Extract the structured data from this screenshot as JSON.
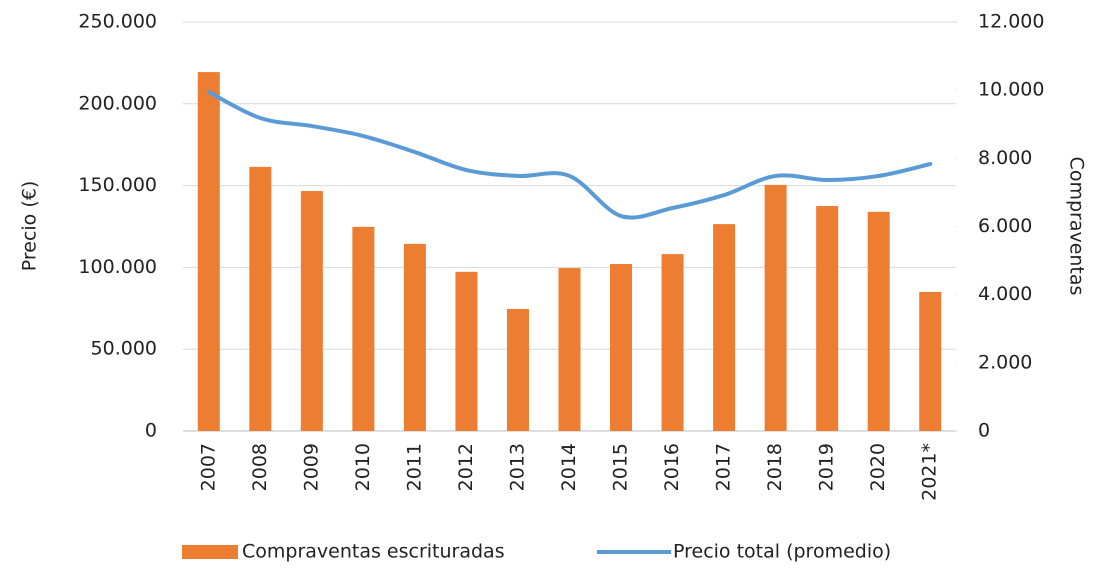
{
  "chart_data": {
    "type": "bar-line",
    "categories": [
      "2007",
      "2008",
      "2009",
      "2010",
      "2011",
      "2012",
      "2013",
      "2014",
      "2015",
      "2016",
      "2017",
      "2018",
      "2019",
      "2020",
      "2021*"
    ],
    "ylabel": "Precio (€)",
    "y2label": "Compraventas",
    "ylim": [
      0,
      250000
    ],
    "yticks": [
      0,
      {
        "value": 50000,
        "label": "50.000"
      },
      {
        "value": 100000,
        "label": "100.000"
      },
      {
        "value": 150000,
        "label": "150.000"
      },
      {
        "value": 200000,
        "label": "200.000"
      },
      {
        "value": 250000,
        "label": "250.000"
      }
    ],
    "y2lim": [
      0,
      12000
    ],
    "y2ticks": [
      0,
      {
        "value": 2000,
        "label": "2.000"
      },
      {
        "value": 4000,
        "label": "4.000"
      },
      {
        "value": 6000,
        "label": "6.000"
      },
      {
        "value": 8000,
        "label": "8.000"
      },
      {
        "value": 10000,
        "label": "10.000"
      },
      {
        "value": 12000,
        "label": "12.000"
      }
    ],
    "grid": true,
    "legend": "bottom",
    "series": [
      {
        "name": "Compraventas escrituradas",
        "type": "bar",
        "axis": "y2",
        "color": "#ed7d31",
        "values": [
          10530,
          7750,
          7040,
          5990,
          5490,
          4670,
          3580,
          4780,
          4900,
          5190,
          6070,
          7220,
          6600,
          6430,
          4080
        ]
      },
      {
        "name": "Precio total (promedio)",
        "type": "line",
        "axis": "y",
        "color": "#5b9bd5",
        "values": [
          207200,
          191300,
          186400,
          180300,
          170500,
          159500,
          155900,
          155900,
          131400,
          136300,
          144200,
          155900,
          153400,
          155900,
          163200
        ]
      }
    ]
  }
}
